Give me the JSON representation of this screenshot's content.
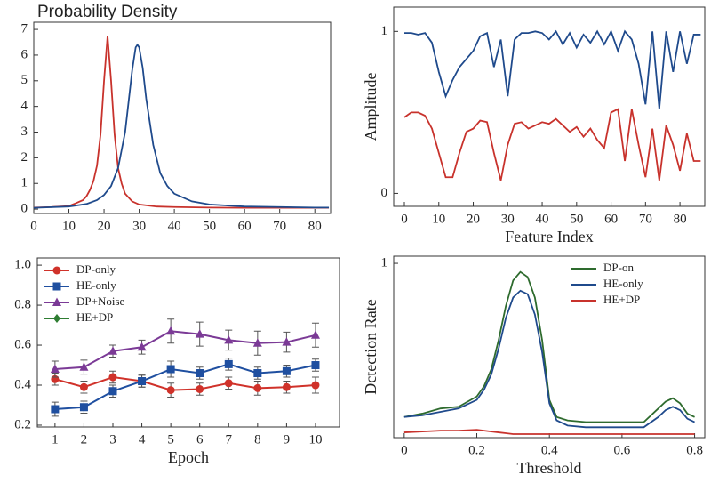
{
  "chart_data": [
    {
      "type": "line",
      "title": "Probability Density",
      "xlim": [
        0,
        84.5
      ],
      "xticks": [
        0,
        10,
        20,
        30,
        40,
        50,
        60,
        70,
        80
      ],
      "ylim": [
        -0.17,
        7.28
      ],
      "yticks": [
        0,
        1,
        2,
        3,
        4,
        5,
        6,
        7
      ],
      "series": [
        {
          "color": "#c8322c",
          "x": [
            0,
            5,
            10,
            12,
            14,
            15,
            16,
            17,
            18,
            19,
            20,
            21,
            22,
            23,
            24,
            25,
            26,
            28,
            30,
            35,
            40,
            50,
            60,
            70,
            80,
            84
          ],
          "values": [
            0.06,
            0.08,
            0.12,
            0.23,
            0.35,
            0.5,
            0.75,
            1.1,
            1.7,
            2.9,
            5.0,
            6.75,
            5.0,
            2.9,
            1.6,
            1.0,
            0.6,
            0.3,
            0.18,
            0.1,
            0.08,
            0.06,
            0.05,
            0.05,
            0.05,
            0.05
          ]
        },
        {
          "color": "#1f4a8c",
          "x": [
            0,
            10,
            15,
            18,
            20,
            22,
            24,
            26,
            27,
            28,
            29,
            29.5,
            30,
            31,
            32,
            34,
            36,
            38,
            40,
            45,
            50,
            60,
            70,
            80,
            84
          ],
          "values": [
            0.05,
            0.1,
            0.2,
            0.35,
            0.55,
            0.9,
            1.6,
            3.0,
            4.2,
            5.4,
            6.3,
            6.4,
            6.3,
            5.5,
            4.3,
            2.5,
            1.4,
            0.9,
            0.6,
            0.3,
            0.18,
            0.1,
            0.08,
            0.06,
            0.06
          ]
        }
      ]
    },
    {
      "type": "line",
      "xlabel": "Feature Index",
      "ylabel": "Amplitude",
      "xlim": [
        -3.1,
        87.2
      ],
      "xticks": [
        0,
        10,
        20,
        30,
        40,
        50,
        60,
        70,
        80
      ],
      "ylim": [
        -0.08,
        1.15
      ],
      "yticks": [
        0,
        1
      ],
      "x": [
        0,
        2,
        4,
        6,
        8,
        10,
        12,
        14,
        16,
        18,
        20,
        22,
        24,
        26,
        28,
        30,
        32,
        34,
        36,
        38,
        40,
        42,
        44,
        46,
        48,
        50,
        52,
        54,
        56,
        58,
        60,
        62,
        64,
        66,
        68,
        70,
        72,
        74,
        76,
        78,
        80,
        82,
        84,
        86
      ],
      "series": [
        {
          "color": "#1f4a8c",
          "values": [
            0.99,
            0.99,
            0.98,
            0.99,
            0.93,
            0.75,
            0.6,
            0.7,
            0.78,
            0.83,
            0.88,
            0.97,
            0.99,
            0.78,
            0.95,
            0.6,
            0.95,
            0.99,
            0.99,
            1.0,
            0.99,
            0.95,
            1.0,
            0.92,
            0.99,
            0.9,
            0.98,
            0.93,
            1.0,
            0.92,
            1.0,
            0.88,
            1.0,
            0.95,
            0.8,
            0.55,
            1.0,
            0.52,
            1.0,
            0.75,
            1.0,
            0.8,
            0.98,
            0.98
          ]
        },
        {
          "color": "#c8322c",
          "values": [
            0.47,
            0.5,
            0.5,
            0.48,
            0.4,
            0.25,
            0.1,
            0.1,
            0.25,
            0.38,
            0.4,
            0.45,
            0.44,
            0.25,
            0.08,
            0.3,
            0.43,
            0.44,
            0.4,
            0.42,
            0.44,
            0.43,
            0.46,
            0.42,
            0.38,
            0.41,
            0.35,
            0.4,
            0.33,
            0.28,
            0.5,
            0.52,
            0.2,
            0.52,
            0.3,
            0.1,
            0.4,
            0.08,
            0.42,
            0.3,
            0.14,
            0.37,
            0.2,
            0.2
          ]
        }
      ]
    },
    {
      "type": "errorbar",
      "xlabel": "Epoch",
      "legend": "upper left",
      "xlim": [
        0.39,
        10.83
      ],
      "xticks": [
        1,
        2,
        3,
        4,
        5,
        6,
        7,
        8,
        9,
        10
      ],
      "ylim": [
        0.191,
        1.036
      ],
      "yticks": [
        0.2,
        0.4,
        0.6,
        0.8,
        {
          "value": 1.0,
          "label": "1.0"
        }
      ],
      "x": [
        1,
        2,
        3,
        4,
        5,
        6,
        7,
        8,
        9,
        10
      ],
      "series": [
        {
          "name": "DP-only",
          "color": "#d0322a",
          "marker": "o",
          "values": [
            0.43,
            0.39,
            0.44,
            0.42,
            0.375,
            0.38,
            0.41,
            0.385,
            0.39,
            0.4
          ],
          "errors": [
            0.03,
            0.03,
            0.03,
            0.03,
            0.035,
            0.03,
            0.03,
            0.035,
            0.03,
            0.04
          ]
        },
        {
          "name": "HE-only",
          "color": "#1f4fa0",
          "marker": "s",
          "values": [
            0.28,
            0.29,
            0.37,
            0.42,
            0.48,
            0.46,
            0.505,
            0.46,
            0.47,
            0.5
          ],
          "errors": [
            0.035,
            0.03,
            0.03,
            0.03,
            0.04,
            0.03,
            0.03,
            0.03,
            0.03,
            0.03
          ]
        },
        {
          "name": "DP+Noise",
          "color": "#7b3a96",
          "marker": "^",
          "values": [
            0.48,
            0.49,
            0.57,
            0.59,
            0.67,
            0.655,
            0.625,
            0.61,
            0.615,
            0.65
          ],
          "errors": [
            0.04,
            0.035,
            0.03,
            0.035,
            0.06,
            0.06,
            0.05,
            0.06,
            0.05,
            0.06
          ]
        },
        {
          "name": "HE+DP",
          "color": "#2e7d32",
          "marker": "D",
          "values": [
            null,
            null,
            null,
            null,
            null,
            null,
            null,
            null,
            null,
            null
          ],
          "errors": [
            null,
            null,
            null,
            null,
            null,
            null,
            null,
            null,
            null,
            null
          ]
        }
      ]
    },
    {
      "type": "line",
      "xlabel": "Threshold",
      "ylabel": "Dctection Rate",
      "legend": "upper right",
      "xlim": [
        -0.029,
        0.828
      ],
      "xticks": [
        0,
        0.2,
        0.4,
        0.6,
        0.8
      ],
      "ylim": [
        -0.021,
        1.042
      ],
      "yticks": [
        1
      ],
      "x": [
        0,
        0.05,
        0.1,
        0.15,
        0.2,
        0.22,
        0.24,
        0.26,
        0.28,
        0.3,
        0.32,
        0.34,
        0.36,
        0.38,
        0.4,
        0.42,
        0.45,
        0.5,
        0.6,
        0.66,
        0.7,
        0.72,
        0.74,
        0.76,
        0.78,
        0.8
      ],
      "series": [
        {
          "name": "DP-on",
          "color": "#2e6b2e",
          "values": [
            0.1,
            0.12,
            0.15,
            0.16,
            0.22,
            0.28,
            0.38,
            0.55,
            0.75,
            0.9,
            0.95,
            0.92,
            0.8,
            0.55,
            0.2,
            0.1,
            0.08,
            0.07,
            0.07,
            0.07,
            0.15,
            0.19,
            0.21,
            0.18,
            0.12,
            0.1
          ]
        },
        {
          "name": "HE-only",
          "color": "#1f4a8c",
          "values": [
            0.1,
            0.11,
            0.13,
            0.15,
            0.2,
            0.26,
            0.35,
            0.5,
            0.68,
            0.8,
            0.84,
            0.82,
            0.7,
            0.48,
            0.18,
            0.08,
            0.05,
            0.04,
            0.04,
            0.04,
            0.1,
            0.14,
            0.16,
            0.14,
            0.09,
            0.07
          ]
        },
        {
          "name": "HE+DP",
          "color": "#c8322c",
          "values": [
            0.01,
            0.015,
            0.02,
            0.02,
            0.025,
            0.02,
            0.015,
            0.01,
            0.005,
            0,
            0,
            0,
            0,
            0,
            0,
            0,
            0,
            0,
            0,
            0,
            0,
            0,
            0,
            0,
            0,
            0
          ]
        }
      ]
    }
  ]
}
